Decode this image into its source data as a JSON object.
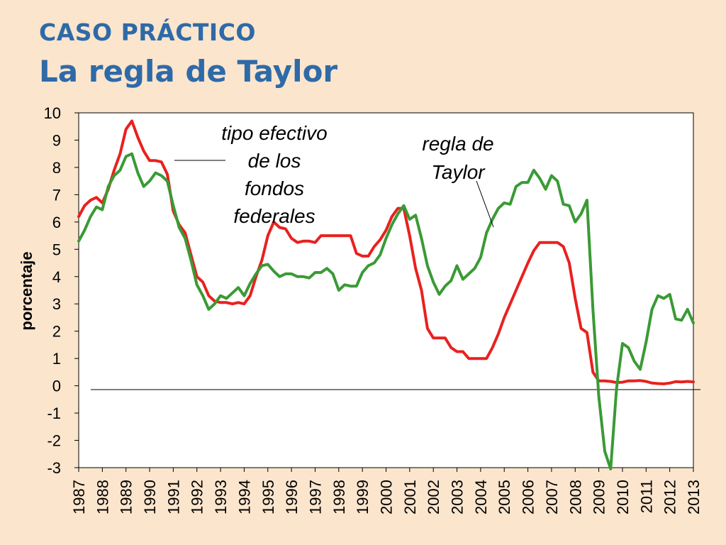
{
  "slide": {
    "title_line1": "CASO PRÁCTICO",
    "title_line2": "La regla de Taylor"
  },
  "colors": {
    "background": "#fbe5cd",
    "title": "#2e6aa8",
    "fed_funds": "#e8211f",
    "taylor_rule": "#3a9a35"
  },
  "chart_data": {
    "type": "line",
    "title": "",
    "xlabel": "",
    "ylabel": "porcentaje",
    "xlim": [
      1987,
      2013
    ],
    "ylim": [
      -3,
      10
    ],
    "yticks": [
      10,
      9,
      8,
      7,
      6,
      5,
      4,
      3,
      2,
      1,
      0,
      -1,
      -2,
      -3
    ],
    "xticks": [
      1987,
      1988,
      1989,
      1990,
      1991,
      1992,
      1993,
      1994,
      1995,
      1996,
      1997,
      1998,
      1999,
      2000,
      2001,
      2002,
      2003,
      2004,
      2005,
      2006,
      2007,
      2008,
      2009,
      2010,
      2011,
      2012,
      2013
    ],
    "grid": false,
    "zero_line": true,
    "annotations": [
      {
        "lines": [
          "tipo efectivo",
          "de los",
          "fondos",
          "federales"
        ],
        "series": "fed_funds"
      },
      {
        "lines": [
          "regla de",
          "Taylor"
        ],
        "series": "taylor_rule"
      }
    ],
    "series": [
      {
        "id": "fed_funds",
        "color": "#e8211f",
        "points": [
          [
            1987.0,
            6.2
          ],
          [
            1987.25,
            6.6
          ],
          [
            1987.5,
            6.8
          ],
          [
            1987.75,
            6.9
          ],
          [
            1988.0,
            6.7
          ],
          [
            1988.25,
            7.2
          ],
          [
            1988.5,
            7.9
          ],
          [
            1988.75,
            8.5
          ],
          [
            1989.0,
            9.4
          ],
          [
            1989.25,
            9.7
          ],
          [
            1989.5,
            9.1
          ],
          [
            1989.75,
            8.6
          ],
          [
            1990.0,
            8.25
          ],
          [
            1990.25,
            8.25
          ],
          [
            1990.5,
            8.2
          ],
          [
            1990.75,
            7.75
          ],
          [
            1991.0,
            6.4
          ],
          [
            1991.25,
            5.9
          ],
          [
            1991.5,
            5.6
          ],
          [
            1991.75,
            4.8
          ],
          [
            1992.0,
            4.0
          ],
          [
            1992.25,
            3.8
          ],
          [
            1992.5,
            3.3
          ],
          [
            1992.75,
            3.1
          ],
          [
            1993.0,
            3.05
          ],
          [
            1993.25,
            3.05
          ],
          [
            1993.5,
            3.0
          ],
          [
            1993.75,
            3.05
          ],
          [
            1994.0,
            3.0
          ],
          [
            1994.25,
            3.3
          ],
          [
            1994.5,
            4.0
          ],
          [
            1994.75,
            4.6
          ],
          [
            1995.0,
            5.5
          ],
          [
            1995.25,
            6.0
          ],
          [
            1995.5,
            5.8
          ],
          [
            1995.75,
            5.75
          ],
          [
            1996.0,
            5.4
          ],
          [
            1996.25,
            5.25
          ],
          [
            1996.5,
            5.3
          ],
          [
            1996.75,
            5.3
          ],
          [
            1997.0,
            5.25
          ],
          [
            1997.25,
            5.5
          ],
          [
            1997.5,
            5.5
          ],
          [
            1997.75,
            5.5
          ],
          [
            1998.0,
            5.5
          ],
          [
            1998.25,
            5.5
          ],
          [
            1998.5,
            5.5
          ],
          [
            1998.75,
            4.85
          ],
          [
            1999.0,
            4.75
          ],
          [
            1999.25,
            4.75
          ],
          [
            1999.5,
            5.1
          ],
          [
            1999.75,
            5.35
          ],
          [
            2000.0,
            5.7
          ],
          [
            2000.25,
            6.2
          ],
          [
            2000.5,
            6.5
          ],
          [
            2000.75,
            6.5
          ],
          [
            2001.0,
            5.5
          ],
          [
            2001.25,
            4.3
          ],
          [
            2001.5,
            3.5
          ],
          [
            2001.75,
            2.1
          ],
          [
            2002.0,
            1.75
          ],
          [
            2002.25,
            1.75
          ],
          [
            2002.5,
            1.75
          ],
          [
            2002.75,
            1.4
          ],
          [
            2003.0,
            1.25
          ],
          [
            2003.25,
            1.25
          ],
          [
            2003.5,
            1.0
          ],
          [
            2003.75,
            1.0
          ],
          [
            2004.0,
            1.0
          ],
          [
            2004.25,
            1.0
          ],
          [
            2004.5,
            1.4
          ],
          [
            2004.75,
            1.9
          ],
          [
            2005.0,
            2.5
          ],
          [
            2005.25,
            3.0
          ],
          [
            2005.5,
            3.5
          ],
          [
            2005.75,
            4.0
          ],
          [
            2006.0,
            4.5
          ],
          [
            2006.25,
            4.95
          ],
          [
            2006.5,
            5.25
          ],
          [
            2006.75,
            5.25
          ],
          [
            2007.0,
            5.25
          ],
          [
            2007.25,
            5.25
          ],
          [
            2007.5,
            5.1
          ],
          [
            2007.75,
            4.5
          ],
          [
            2008.0,
            3.2
          ],
          [
            2008.25,
            2.1
          ],
          [
            2008.5,
            1.95
          ],
          [
            2008.75,
            0.5
          ],
          [
            2009.0,
            0.18
          ],
          [
            2009.25,
            0.18
          ],
          [
            2009.5,
            0.16
          ],
          [
            2009.75,
            0.12
          ],
          [
            2010.0,
            0.13
          ],
          [
            2010.25,
            0.18
          ],
          [
            2010.5,
            0.18
          ],
          [
            2010.75,
            0.19
          ],
          [
            2011.0,
            0.16
          ],
          [
            2011.25,
            0.1
          ],
          [
            2011.5,
            0.08
          ],
          [
            2011.75,
            0.07
          ],
          [
            2012.0,
            0.1
          ],
          [
            2012.25,
            0.15
          ],
          [
            2012.5,
            0.14
          ],
          [
            2012.75,
            0.16
          ],
          [
            2013.0,
            0.14
          ]
        ]
      },
      {
        "id": "taylor_rule",
        "color": "#3a9a35",
        "points": [
          [
            1987.0,
            5.3
          ],
          [
            1987.25,
            5.7
          ],
          [
            1987.5,
            6.2
          ],
          [
            1987.75,
            6.55
          ],
          [
            1988.0,
            6.45
          ],
          [
            1988.25,
            7.3
          ],
          [
            1988.5,
            7.7
          ],
          [
            1988.75,
            7.9
          ],
          [
            1989.0,
            8.4
          ],
          [
            1989.25,
            8.5
          ],
          [
            1989.5,
            7.8
          ],
          [
            1989.75,
            7.3
          ],
          [
            1990.0,
            7.5
          ],
          [
            1990.25,
            7.8
          ],
          [
            1990.5,
            7.7
          ],
          [
            1990.75,
            7.5
          ],
          [
            1991.0,
            6.6
          ],
          [
            1991.25,
            5.8
          ],
          [
            1991.5,
            5.4
          ],
          [
            1991.75,
            4.6
          ],
          [
            1992.0,
            3.7
          ],
          [
            1992.25,
            3.3
          ],
          [
            1992.5,
            2.8
          ],
          [
            1992.75,
            3.0
          ],
          [
            1993.0,
            3.3
          ],
          [
            1993.25,
            3.2
          ],
          [
            1993.5,
            3.4
          ],
          [
            1993.75,
            3.6
          ],
          [
            1994.0,
            3.3
          ],
          [
            1994.25,
            3.75
          ],
          [
            1994.5,
            4.1
          ],
          [
            1994.75,
            4.4
          ],
          [
            1995.0,
            4.45
          ],
          [
            1995.25,
            4.2
          ],
          [
            1995.5,
            4.0
          ],
          [
            1995.75,
            4.1
          ],
          [
            1996.0,
            4.1
          ],
          [
            1996.25,
            4.0
          ],
          [
            1996.5,
            4.0
          ],
          [
            1996.75,
            3.95
          ],
          [
            1997.0,
            4.15
          ],
          [
            1997.25,
            4.15
          ],
          [
            1997.5,
            4.3
          ],
          [
            1997.75,
            4.1
          ],
          [
            1998.0,
            3.5
          ],
          [
            1998.25,
            3.7
          ],
          [
            1998.5,
            3.65
          ],
          [
            1998.75,
            3.65
          ],
          [
            1999.0,
            4.15
          ],
          [
            1999.25,
            4.4
          ],
          [
            1999.5,
            4.5
          ],
          [
            1999.75,
            4.8
          ],
          [
            2000.0,
            5.4
          ],
          [
            2000.25,
            5.9
          ],
          [
            2000.5,
            6.3
          ],
          [
            2000.75,
            6.6
          ],
          [
            2001.0,
            6.1
          ],
          [
            2001.25,
            6.25
          ],
          [
            2001.5,
            5.4
          ],
          [
            2001.75,
            4.4
          ],
          [
            2002.0,
            3.8
          ],
          [
            2002.25,
            3.35
          ],
          [
            2002.5,
            3.65
          ],
          [
            2002.75,
            3.85
          ],
          [
            2003.0,
            4.4
          ],
          [
            2003.25,
            3.9
          ],
          [
            2003.5,
            4.1
          ],
          [
            2003.75,
            4.3
          ],
          [
            2004.0,
            4.7
          ],
          [
            2004.25,
            5.6
          ],
          [
            2004.5,
            6.1
          ],
          [
            2004.75,
            6.5
          ],
          [
            2005.0,
            6.7
          ],
          [
            2005.25,
            6.65
          ],
          [
            2005.5,
            7.3
          ],
          [
            2005.75,
            7.45
          ],
          [
            2006.0,
            7.45
          ],
          [
            2006.25,
            7.9
          ],
          [
            2006.5,
            7.6
          ],
          [
            2006.75,
            7.2
          ],
          [
            2007.0,
            7.7
          ],
          [
            2007.25,
            7.5
          ],
          [
            2007.5,
            6.65
          ],
          [
            2007.75,
            6.6
          ],
          [
            2008.0,
            6.0
          ],
          [
            2008.25,
            6.3
          ],
          [
            2008.5,
            6.8
          ],
          [
            2008.75,
            2.8
          ],
          [
            2009.0,
            -0.4
          ],
          [
            2009.25,
            -2.4
          ],
          [
            2009.5,
            -3.05
          ],
          [
            2009.75,
            -0.1
          ],
          [
            2010.0,
            1.55
          ],
          [
            2010.25,
            1.4
          ],
          [
            2010.5,
            0.9
          ],
          [
            2010.75,
            0.6
          ],
          [
            2011.0,
            1.6
          ],
          [
            2011.25,
            2.8
          ],
          [
            2011.5,
            3.3
          ],
          [
            2011.75,
            3.2
          ],
          [
            2012.0,
            3.35
          ],
          [
            2012.25,
            2.45
          ],
          [
            2012.5,
            2.4
          ],
          [
            2012.75,
            2.8
          ],
          [
            2013.0,
            2.3
          ]
        ]
      }
    ]
  }
}
